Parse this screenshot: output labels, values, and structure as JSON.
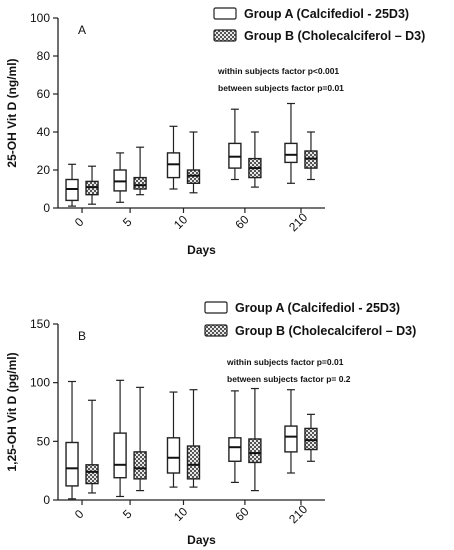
{
  "chart_data": [
    {
      "type": "boxplot",
      "panel_label": "A",
      "ylabel": "25-OH Vit D (ng/ml)",
      "xlabel": "Days",
      "categories": [
        "0",
        "5",
        "10",
        "60",
        "210"
      ],
      "ylim": [
        0,
        100
      ],
      "yticks": [
        "0",
        "20",
        "40",
        "60",
        "80",
        "100"
      ],
      "legend": {
        "position": "top-right"
      },
      "annotations": [
        "within subjects factor p<0.001",
        "between subjects factor p=0.01"
      ],
      "series": [
        {
          "name": "Group A (Calcifediol - 25D3)",
          "fill": "#ffffff",
          "boxes": [
            {
              "min": 1,
              "q1": 4,
              "median": 10,
              "q3": 15,
              "max": 23
            },
            {
              "min": 3,
              "q1": 9,
              "median": 14,
              "q3": 20,
              "max": 29
            },
            {
              "min": 10,
              "q1": 16,
              "median": 23,
              "q3": 29,
              "max": 43
            },
            {
              "min": 15,
              "q1": 21,
              "median": 27,
              "q3": 34,
              "max": 52
            },
            {
              "min": 13,
              "q1": 24,
              "median": 28,
              "q3": 34,
              "max": 55
            }
          ]
        },
        {
          "name": "Group B (Cholecalciferol – D3)",
          "fill": "#8a8a8a",
          "boxes": [
            {
              "min": 2,
              "q1": 7,
              "median": 11,
              "q3": 14,
              "max": 22
            },
            {
              "min": 7,
              "q1": 10,
              "median": 12,
              "q3": 16,
              "max": 32
            },
            {
              "min": 8,
              "q1": 13,
              "median": 17,
              "q3": 20,
              "max": 40
            },
            {
              "min": 11,
              "q1": 16,
              "median": 21,
              "q3": 26,
              "max": 40
            },
            {
              "min": 15,
              "q1": 21,
              "median": 26,
              "q3": 30,
              "max": 40
            }
          ]
        }
      ]
    },
    {
      "type": "boxplot",
      "panel_label": "B",
      "ylabel": "1,25-OH Vit D (pg/ml)",
      "xlabel": "Days",
      "categories": [
        "0",
        "5",
        "10",
        "60",
        "210"
      ],
      "ylim": [
        0,
        150
      ],
      "yticks": [
        "0",
        "50",
        "100",
        "150"
      ],
      "legend": {
        "position": "top-right"
      },
      "annotations": [
        "within subjects factor p=0.01",
        "between subjects factor p= 0.2"
      ],
      "series": [
        {
          "name": "Group A (Calcifediol - 25D3)",
          "fill": "#ffffff",
          "boxes": [
            {
              "min": 1,
              "q1": 12,
              "median": 27,
              "q3": 49,
              "max": 101
            },
            {
              "min": 3,
              "q1": 19,
              "median": 30,
              "q3": 57,
              "max": 102
            },
            {
              "min": 11,
              "q1": 23,
              "median": 36,
              "q3": 53,
              "max": 92
            },
            {
              "min": 15,
              "q1": 33,
              "median": 45,
              "q3": 53,
              "max": 93
            },
            {
              "min": 23,
              "q1": 41,
              "median": 54,
              "q3": 63,
              "max": 94
            }
          ]
        },
        {
          "name": "Group B (Cholecalciferol – D3)",
          "fill": "#8a8a8a",
          "boxes": [
            {
              "min": 6,
              "q1": 14,
              "median": 24,
              "q3": 30,
              "max": 85
            },
            {
              "min": 8,
              "q1": 18,
              "median": 27,
              "q3": 41,
              "max": 96
            },
            {
              "min": 11,
              "q1": 18,
              "median": 30,
              "q3": 46,
              "max": 94
            },
            {
              "min": 8,
              "q1": 32,
              "median": 40,
              "q3": 52,
              "max": 95
            },
            {
              "min": 33,
              "q1": 43,
              "median": 51,
              "q3": 61,
              "max": 73
            }
          ]
        }
      ]
    }
  ]
}
